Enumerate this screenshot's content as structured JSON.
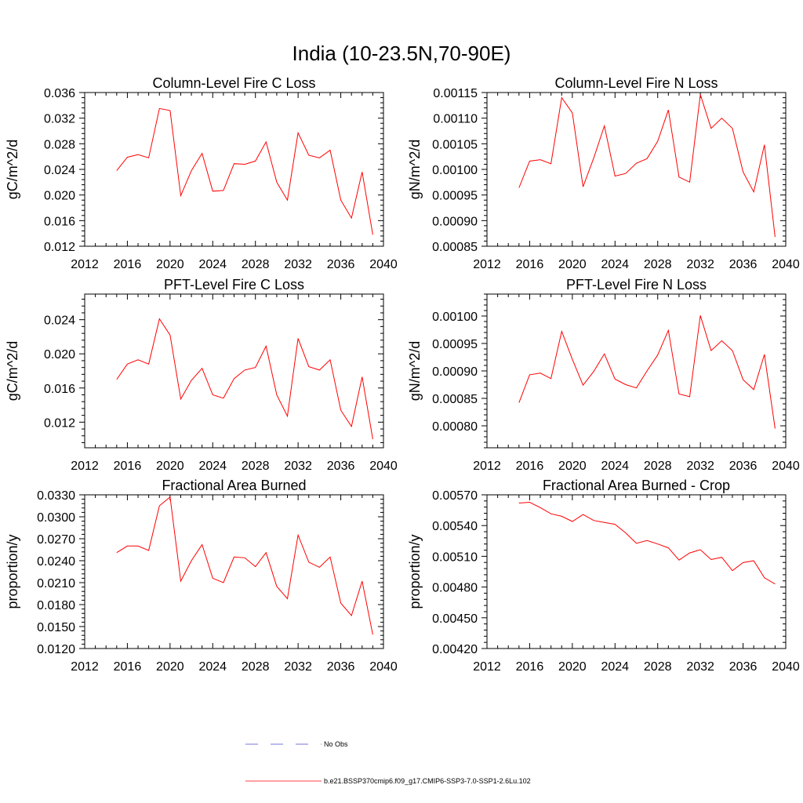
{
  "title": "India (10-23.5N,70-90E)",
  "legend": [
    {
      "label": "No Obs",
      "color": "#4a4ad0",
      "style": "dashed"
    },
    {
      "label": "b.e21.BSSP370cmip6.f09_g17.CMIP6-SSP3-7.0-SSP1-2.6Lu.102",
      "color": "#ff0000",
      "style": "solid"
    }
  ],
  "chart_data": [
    {
      "type": "line",
      "title": "Column-Level Fire C Loss",
      "ylabel": "gC/m^2/d",
      "xlim": [
        2012,
        2040
      ],
      "ylim": [
        0.012,
        0.036
      ],
      "xticks": [
        2012,
        2016,
        2020,
        2024,
        2028,
        2032,
        2036,
        2040
      ],
      "yticks": [
        0.012,
        0.016,
        0.02,
        0.024,
        0.028,
        0.032,
        0.036
      ],
      "ytick_labels": [
        "0.012",
        "0.016",
        "0.020",
        "0.024",
        "0.028",
        "0.032",
        "0.036"
      ],
      "x": [
        2015,
        2016,
        2017,
        2018,
        2019,
        2020,
        2021,
        2022,
        2023,
        2024,
        2025,
        2026,
        2027,
        2028,
        2029,
        2030,
        2031,
        2032,
        2033,
        2034,
        2035,
        2036,
        2037,
        2038,
        2039
      ],
      "series": [
        {
          "color": "#ff0000",
          "values": [
            0.0238,
            0.0259,
            0.0263,
            0.0258,
            0.0335,
            0.0332,
            0.0199,
            0.0238,
            0.0265,
            0.0206,
            0.0207,
            0.0249,
            0.0248,
            0.0253,
            0.0283,
            0.022,
            0.0192,
            0.0297,
            0.0262,
            0.0258,
            0.027,
            0.0192,
            0.0164,
            0.0236,
            0.0138
          ]
        }
      ]
    },
    {
      "type": "line",
      "title": "Column-Level Fire N Loss",
      "ylabel": "gN/m^2/d",
      "xlim": [
        2012,
        2040
      ],
      "ylim": [
        0.00085,
        0.00115
      ],
      "xticks": [
        2012,
        2016,
        2020,
        2024,
        2028,
        2032,
        2036,
        2040
      ],
      "yticks": [
        0.00085,
        0.0009,
        0.00095,
        0.001,
        0.00105,
        0.0011,
        0.00115
      ],
      "ytick_labels": [
        "0.00085",
        "0.00090",
        "0.00095",
        "0.00100",
        "0.00105",
        "0.00110",
        "0.00115"
      ],
      "x": [
        2015,
        2016,
        2017,
        2018,
        2019,
        2020,
        2021,
        2022,
        2023,
        2024,
        2025,
        2026,
        2027,
        2028,
        2029,
        2030,
        2031,
        2032,
        2033,
        2034,
        2035,
        2036,
        2037,
        2038,
        2039
      ],
      "series": [
        {
          "color": "#ff0000",
          "values": [
            0.000964,
            0.001016,
            0.001019,
            0.001011,
            0.00114,
            0.00111,
            0.000966,
            0.001022,
            0.001085,
            0.000987,
            0.000992,
            0.001012,
            0.001021,
            0.001055,
            0.001116,
            0.000985,
            0.000975,
            0.001146,
            0.00108,
            0.0011,
            0.00108,
            0.000995,
            0.000956,
            0.001048,
            0.000868
          ]
        }
      ]
    },
    {
      "type": "line",
      "title": "PFT-Level Fire C Loss",
      "ylabel": "gC/m^2/d",
      "xlim": [
        2012,
        2040
      ],
      "ylim": [
        0.009,
        0.027
      ],
      "xticks": [
        2012,
        2016,
        2020,
        2024,
        2028,
        2032,
        2036,
        2040
      ],
      "yticks": [
        0.012,
        0.016,
        0.02,
        0.024
      ],
      "ytick_labels": [
        "0.012",
        "0.016",
        "0.020",
        "0.024"
      ],
      "x": [
        2015,
        2016,
        2017,
        2018,
        2019,
        2020,
        2021,
        2022,
        2023,
        2024,
        2025,
        2026,
        2027,
        2028,
        2029,
        2030,
        2031,
        2032,
        2033,
        2034,
        2035,
        2036,
        2037,
        2038,
        2039
      ],
      "series": [
        {
          "color": "#ff0000",
          "values": [
            0.017,
            0.0188,
            0.0193,
            0.0188,
            0.0241,
            0.0222,
            0.0147,
            0.0169,
            0.0183,
            0.0152,
            0.0148,
            0.0171,
            0.0181,
            0.0184,
            0.0209,
            0.0152,
            0.0127,
            0.0218,
            0.0185,
            0.0181,
            0.0193,
            0.0134,
            0.0115,
            0.0173,
            0.01
          ]
        }
      ]
    },
    {
      "type": "line",
      "title": "PFT-Level Fire N Loss",
      "ylabel": "gN/m^2/d",
      "xlim": [
        2012,
        2040
      ],
      "ylim": [
        0.00076,
        0.00104
      ],
      "xticks": [
        2012,
        2016,
        2020,
        2024,
        2028,
        2032,
        2036,
        2040
      ],
      "yticks": [
        0.0008,
        0.00085,
        0.0009,
        0.00095,
        0.001
      ],
      "ytick_labels": [
        "0.00080",
        "0.00085",
        "0.00090",
        "0.00095",
        "0.00100"
      ],
      "x": [
        2015,
        2016,
        2017,
        2018,
        2019,
        2020,
        2021,
        2022,
        2023,
        2024,
        2025,
        2026,
        2027,
        2028,
        2029,
        2030,
        2031,
        2032,
        2033,
        2034,
        2035,
        2036,
        2037,
        2038,
        2039
      ],
      "series": [
        {
          "color": "#ff0000",
          "values": [
            0.000842,
            0.000893,
            0.000896,
            0.000886,
            0.000972,
            0.000921,
            0.000874,
            0.000899,
            0.000931,
            0.000885,
            0.000875,
            0.000869,
            0.0009,
            0.000929,
            0.000974,
            0.000858,
            0.000853,
            0.001001,
            0.000937,
            0.000955,
            0.000937,
            0.000884,
            0.000866,
            0.00093,
            0.000795
          ]
        }
      ]
    },
    {
      "type": "line",
      "title": "Fractional Area Burned",
      "ylabel": "proportion/y",
      "xlim": [
        2012,
        2040
      ],
      "ylim": [
        0.012,
        0.033
      ],
      "xticks": [
        2012,
        2016,
        2020,
        2024,
        2028,
        2032,
        2036,
        2040
      ],
      "yticks": [
        0.012,
        0.015,
        0.018,
        0.021,
        0.024,
        0.027,
        0.03,
        0.033
      ],
      "ytick_labels": [
        "0.0120",
        "0.0150",
        "0.0180",
        "0.0210",
        "0.0240",
        "0.0270",
        "0.0300",
        "0.0330"
      ],
      "x": [
        2015,
        2016,
        2017,
        2018,
        2019,
        2020,
        2021,
        2022,
        2023,
        2024,
        2025,
        2026,
        2027,
        2028,
        2029,
        2030,
        2031,
        2032,
        2033,
        2034,
        2035,
        2036,
        2037,
        2038,
        2039
      ],
      "series": [
        {
          "color": "#ff0000",
          "values": [
            0.0251,
            0.026,
            0.026,
            0.0254,
            0.0315,
            0.0327,
            0.0212,
            0.024,
            0.0262,
            0.0216,
            0.021,
            0.0245,
            0.0244,
            0.0232,
            0.0251,
            0.0205,
            0.0188,
            0.0275,
            0.0238,
            0.0231,
            0.0245,
            0.0182,
            0.0165,
            0.0212,
            0.0139
          ]
        }
      ]
    },
    {
      "type": "line",
      "title": "Fractional Area Burned - Crop",
      "ylabel": "proportion/y",
      "xlim": [
        2012,
        2040
      ],
      "ylim": [
        0.0042,
        0.0057
      ],
      "xticks": [
        2012,
        2016,
        2020,
        2024,
        2028,
        2032,
        2036,
        2040
      ],
      "yticks": [
        0.0042,
        0.0045,
        0.0048,
        0.0051,
        0.0054,
        0.0057
      ],
      "ytick_labels": [
        "0.00420",
        "0.00450",
        "0.00480",
        "0.00510",
        "0.00540",
        "0.00570"
      ],
      "x": [
        2015,
        2016,
        2017,
        2018,
        2019,
        2020,
        2021,
        2022,
        2023,
        2024,
        2025,
        2026,
        2027,
        2028,
        2029,
        2030,
        2031,
        2032,
        2033,
        2034,
        2035,
        2036,
        2037,
        2038,
        2039
      ],
      "series": [
        {
          "color": "#ff0000",
          "values": [
            0.00562,
            0.005627,
            0.005575,
            0.005515,
            0.00549,
            0.00544,
            0.005508,
            0.00545,
            0.00543,
            0.005412,
            0.005328,
            0.005227,
            0.005254,
            0.00522,
            0.005183,
            0.005063,
            0.005133,
            0.005164,
            0.005069,
            0.00509,
            0.00496,
            0.005039,
            0.005056,
            0.00489,
            0.00483
          ]
        }
      ]
    }
  ]
}
